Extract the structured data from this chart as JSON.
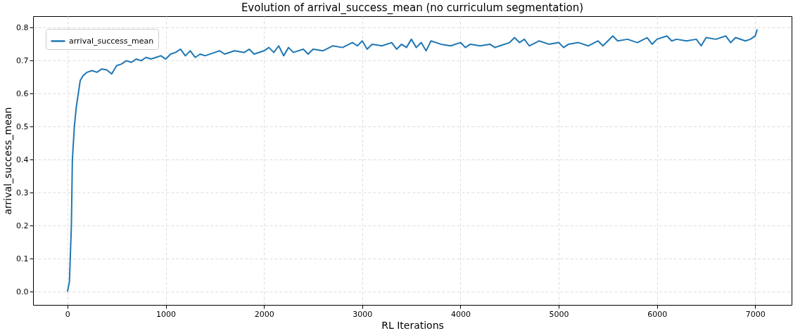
{
  "chart_data": {
    "type": "line",
    "title": "Evolution of arrival_success_mean (no curriculum segmentation)",
    "xlabel": "RL Iterations",
    "ylabel": "arrival_success_mean",
    "xlim": [
      -350,
      7370
    ],
    "ylim": [
      -0.04,
      0.835
    ],
    "xticks": [
      0,
      1000,
      2000,
      3000,
      4000,
      5000,
      6000,
      7000
    ],
    "yticks": [
      {
        "value": 0,
        "label": "0.0"
      },
      0.1,
      0.2,
      0.3,
      0.4,
      0.5,
      0.6,
      0.7,
      0.8
    ],
    "grid": true,
    "legend": "top left",
    "line_style": "solid",
    "marker": "none",
    "x": [
      0,
      20,
      40,
      50,
      70,
      90,
      110,
      130,
      160,
      200,
      250,
      300,
      350,
      400,
      450,
      500,
      550,
      600,
      650,
      700,
      750,
      800,
      850,
      900,
      950,
      1000,
      1050,
      1100,
      1150,
      1200,
      1250,
      1300,
      1350,
      1400,
      1500,
      1550,
      1600,
      1700,
      1800,
      1850,
      1900,
      2000,
      2050,
      2100,
      2150,
      2200,
      2250,
      2300,
      2400,
      2450,
      2500,
      2600,
      2700,
      2800,
      2900,
      2950,
      3000,
      3050,
      3100,
      3200,
      3300,
      3350,
      3400,
      3450,
      3500,
      3550,
      3600,
      3650,
      3700,
      3800,
      3900,
      4000,
      4050,
      4100,
      4200,
      4300,
      4350,
      4400,
      4500,
      4550,
      4600,
      4650,
      4700,
      4800,
      4900,
      5000,
      5050,
      5100,
      5200,
      5300,
      5400,
      5450,
      5500,
      5550,
      5600,
      5700,
      5800,
      5900,
      5950,
      6000,
      6100,
      6150,
      6200,
      6300,
      6400,
      6450,
      6500,
      6600,
      6700,
      6750,
      6800,
      6900,
      6950,
      7000,
      7020
    ],
    "series": [
      {
        "name": "arrival_success_mean",
        "color": "#1f77b4",
        "values": [
          0,
          0.03,
          0.2,
          0.4,
          0.5,
          0.56,
          0.6,
          0.64,
          0.655,
          0.665,
          0.67,
          0.665,
          0.675,
          0.672,
          0.66,
          0.685,
          0.69,
          0.7,
          0.695,
          0.705,
          0.7,
          0.71,
          0.705,
          0.71,
          0.715,
          0.705,
          0.72,
          0.725,
          0.735,
          0.715,
          0.73,
          0.71,
          0.72,
          0.715,
          0.725,
          0.73,
          0.72,
          0.73,
          0.725,
          0.735,
          0.72,
          0.73,
          0.74,
          0.725,
          0.745,
          0.715,
          0.74,
          0.725,
          0.735,
          0.72,
          0.735,
          0.73,
          0.745,
          0.74,
          0.755,
          0.745,
          0.76,
          0.735,
          0.75,
          0.745,
          0.755,
          0.735,
          0.75,
          0.74,
          0.765,
          0.74,
          0.755,
          0.73,
          0.76,
          0.75,
          0.745,
          0.755,
          0.74,
          0.75,
          0.745,
          0.75,
          0.74,
          0.745,
          0.755,
          0.77,
          0.755,
          0.765,
          0.745,
          0.76,
          0.75,
          0.755,
          0.74,
          0.75,
          0.755,
          0.745,
          0.76,
          0.745,
          0.76,
          0.775,
          0.76,
          0.765,
          0.755,
          0.77,
          0.75,
          0.765,
          0.775,
          0.76,
          0.765,
          0.76,
          0.765,
          0.745,
          0.77,
          0.765,
          0.775,
          0.755,
          0.77,
          0.76,
          0.765,
          0.775,
          0.795
        ]
      }
    ]
  }
}
